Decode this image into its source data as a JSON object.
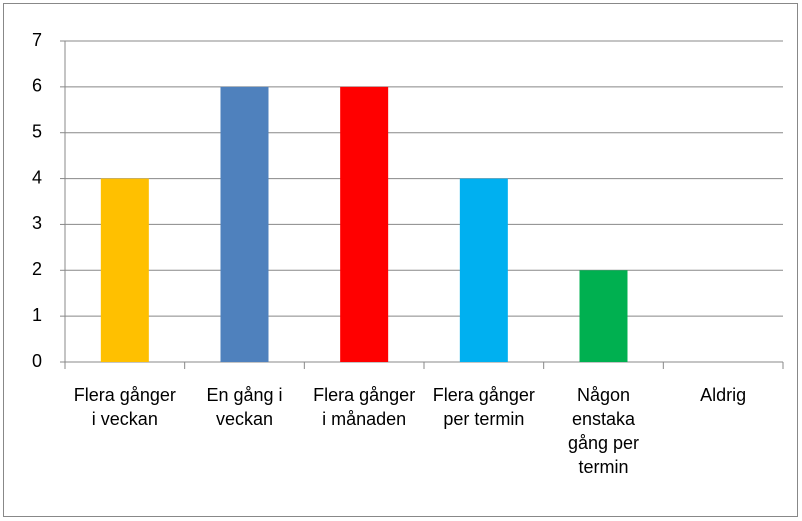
{
  "chart_data": {
    "type": "bar",
    "categories": [
      "Flera gånger i veckan",
      "En gång i veckan",
      "Flera gånger i månaden",
      "Flera gånger per termin",
      "Någon enstaka gång per termin",
      "Aldrig"
    ],
    "values": [
      4,
      6,
      6,
      4,
      2,
      0
    ],
    "colors": [
      "#FFC000",
      "#4F81BD",
      "#FF0000",
      "#00B0F0",
      "#00B050",
      null
    ],
    "ylim": [
      0,
      7
    ],
    "yticks": [
      0,
      1,
      2,
      3,
      4,
      5,
      6,
      7
    ],
    "grid": true
  }
}
